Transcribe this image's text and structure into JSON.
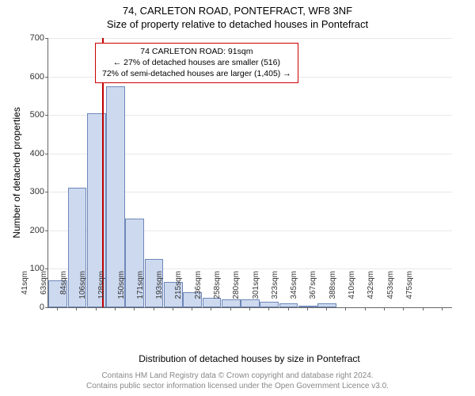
{
  "title_line1": "74, CARLETON ROAD, PONTEFRACT, WF8 3NF",
  "title_line2": "Size of property relative to detached houses in Pontefract",
  "ylabel": "Number of detached properties",
  "xlabel": "Distribution of detached houses by size in Pontefract",
  "footer_line1": "Contains HM Land Registry data © Crown copyright and database right 2024.",
  "footer_line2": "Contains public sector information licensed under the Open Government Licence v3.0.",
  "infobox": {
    "line1": "74 CARLETON ROAD: 91sqm",
    "line2": "← 27% of detached houses are smaller (516)",
    "line3": "72% of semi-detached houses are larger (1,405) →",
    "border_color": "#c00000"
  },
  "chart": {
    "type": "histogram",
    "ylim": [
      0,
      700
    ],
    "ytick_step": 100,
    "bar_fill": "#cdd9ef",
    "bar_stroke": "#6e87b8",
    "background_color": "#ffffff",
    "grid_color": "#e8e8e8",
    "axis_color": "#666666",
    "marker_line": {
      "x_index": 2.3,
      "color": "#c00000"
    },
    "x_labels": [
      "41sqm",
      "63sqm",
      "84sqm",
      "106sqm",
      "128sqm",
      "150sqm",
      "171sqm",
      "193sqm",
      "215sqm",
      "236sqm",
      "258sqm",
      "280sqm",
      "301sqm",
      "323sqm",
      "345sqm",
      "367sqm",
      "388sqm",
      "410sqm",
      "432sqm",
      "453sqm",
      "475sqm"
    ],
    "values": [
      70,
      310,
      505,
      575,
      230,
      125,
      65,
      40,
      25,
      20,
      20,
      15,
      10,
      5,
      10,
      0,
      0,
      0,
      0,
      0,
      0
    ]
  }
}
